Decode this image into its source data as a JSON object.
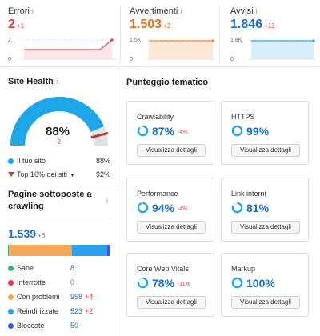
{
  "metrics": [
    {
      "label": "Errori",
      "value": "2",
      "delta": "+1",
      "color": "#e03b3b",
      "axis_top": "2",
      "axis_bottom": "0",
      "line_color": "#e8475b",
      "fill_color": "#fde6e8"
    },
    {
      "label": "Avvertimenti",
      "value": "1.503",
      "delta": "+2",
      "color": "#e8701a",
      "axis_top": "1.5K",
      "axis_bottom": "0",
      "line_color": "#f08a3c",
      "fill_color": "#fde7d6"
    },
    {
      "label": "Avvisi",
      "value": "1.846",
      "delta": "+13",
      "color": "#1a6fc4",
      "axis_top": "1.8K",
      "axis_bottom": "0",
      "line_color": "#3ab0f0",
      "fill_color": "#d7eefc"
    }
  ],
  "info_icon": "i",
  "site_health": {
    "title": "Site Health",
    "score": "88%",
    "score_fraction": 0.88,
    "top10_fraction": 0.92,
    "delta": "-2",
    "legend": [
      {
        "label": "Il tuo sito",
        "value": "88%",
        "color": "#1ea7e8"
      },
      {
        "label": "Top 10% dei siti",
        "value": "92%",
        "color": "#c0392b",
        "chevron": "▼"
      }
    ]
  },
  "crawled": {
    "title": "Pagine sottoposte a crawling",
    "total": "1.539",
    "total_delta": "+6",
    "categories": [
      {
        "label": "Sane",
        "count": "8",
        "delta": "",
        "color": "#2fb37a",
        "share": 8
      },
      {
        "label": "Interrotte",
        "count": "0",
        "delta": "",
        "color": "#e03b3b",
        "share": 0
      },
      {
        "label": "Con problemi",
        "count": "958",
        "delta": "+4",
        "color": "#f4a95a",
        "share": 958
      },
      {
        "label": "Reindirizzate",
        "count": "523",
        "delta": "+2",
        "color": "#2d9fe8",
        "share": 523
      },
      {
        "label": "Bloccate",
        "count": "50",
        "delta": "",
        "color": "#3b5bdb",
        "share": 50
      }
    ]
  },
  "thematic": {
    "title": "Punteggio tematico",
    "button_label": "Visualizza dettagli",
    "cards": [
      {
        "name": "Crawlability",
        "score": "87%",
        "fraction": 0.87,
        "delta": "-4%"
      },
      {
        "name": "HTTPS",
        "score": "99%",
        "fraction": 0.99,
        "delta": ""
      },
      {
        "name": "Performance",
        "score": "94%",
        "fraction": 0.94,
        "delta": "-4%"
      },
      {
        "name": "Link interni",
        "score": "81%",
        "fraction": 0.81,
        "delta": ""
      },
      {
        "name": "Core Web Vitals",
        "score": "78%",
        "fraction": 0.78,
        "delta": "-11%"
      },
      {
        "name": "Markup",
        "score": "100%",
        "fraction": 1.0,
        "delta": ""
      }
    ]
  },
  "colors": {
    "accent": "#1a6fc4",
    "ring": "#1ea7e8",
    "ring_track": "#d9eefb",
    "gauge_track": "#dfe3e8"
  }
}
